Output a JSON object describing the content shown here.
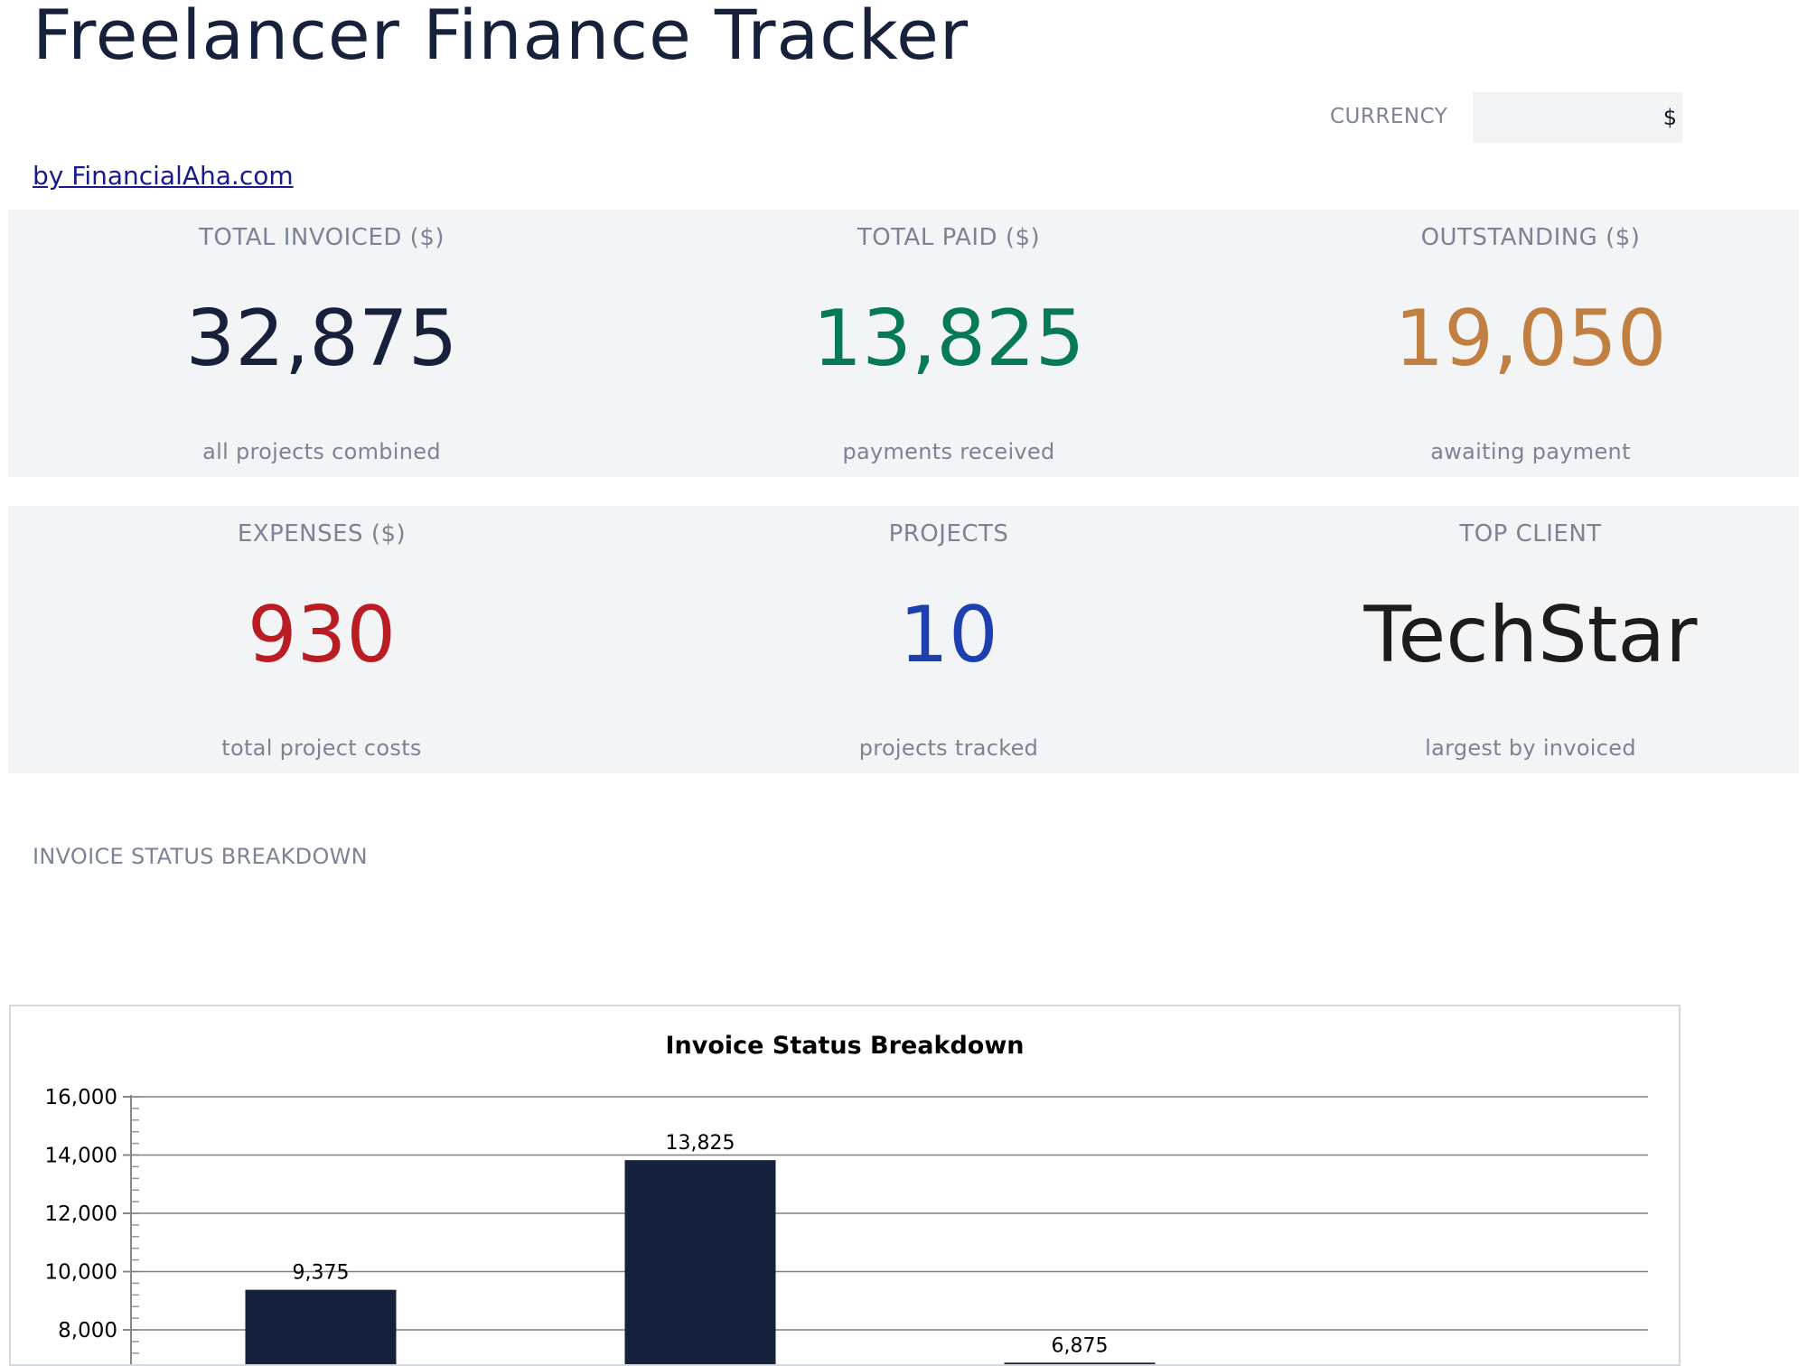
{
  "header": {
    "title": "Freelancer Finance Tracker",
    "byline": "by FinancialAha.com"
  },
  "currency": {
    "label": "CURRENCY",
    "value": "$"
  },
  "kpis": {
    "total_invoiced": {
      "label": "TOTAL INVOICED ($)",
      "value": "32,875",
      "sub": "all projects combined",
      "color": "#17213b"
    },
    "total_paid": {
      "label": "TOTAL PAID ($)",
      "value": "13,825",
      "sub": "payments received",
      "color": "#067a55"
    },
    "outstanding": {
      "label": "OUTSTANDING ($)",
      "value": "19,050",
      "sub": "awaiting payment",
      "color": "#c17f42"
    },
    "expenses": {
      "label": "EXPENSES ($)",
      "value": "930",
      "sub": "total project costs",
      "color": "#b91c22"
    },
    "projects": {
      "label": "PROJECTS",
      "value": "10",
      "sub": "projects tracked",
      "color": "#1e40af"
    },
    "top_client": {
      "label": "TOP CLIENT",
      "value": "TechStar",
      "sub": "largest by invoiced",
      "color": "#1c1c1c"
    }
  },
  "section": {
    "invoice_status_label": "INVOICE STATUS BREAKDOWN"
  },
  "chart_data": {
    "type": "bar",
    "title": "Invoice Status Breakdown",
    "xlabel": "",
    "ylabel": "",
    "values": [
      9375,
      13825,
      6875
    ],
    "value_labels": [
      "9,375",
      "13,825",
      "6,875"
    ],
    "ylim": [
      0,
      16000
    ],
    "yticks": [
      "16,000",
      "14,000",
      "12,000",
      "10,000",
      "8,000"
    ],
    "ytick_values": [
      16000,
      14000,
      12000,
      10000,
      8000
    ],
    "grid": true,
    "bar_color": "#16213b"
  }
}
